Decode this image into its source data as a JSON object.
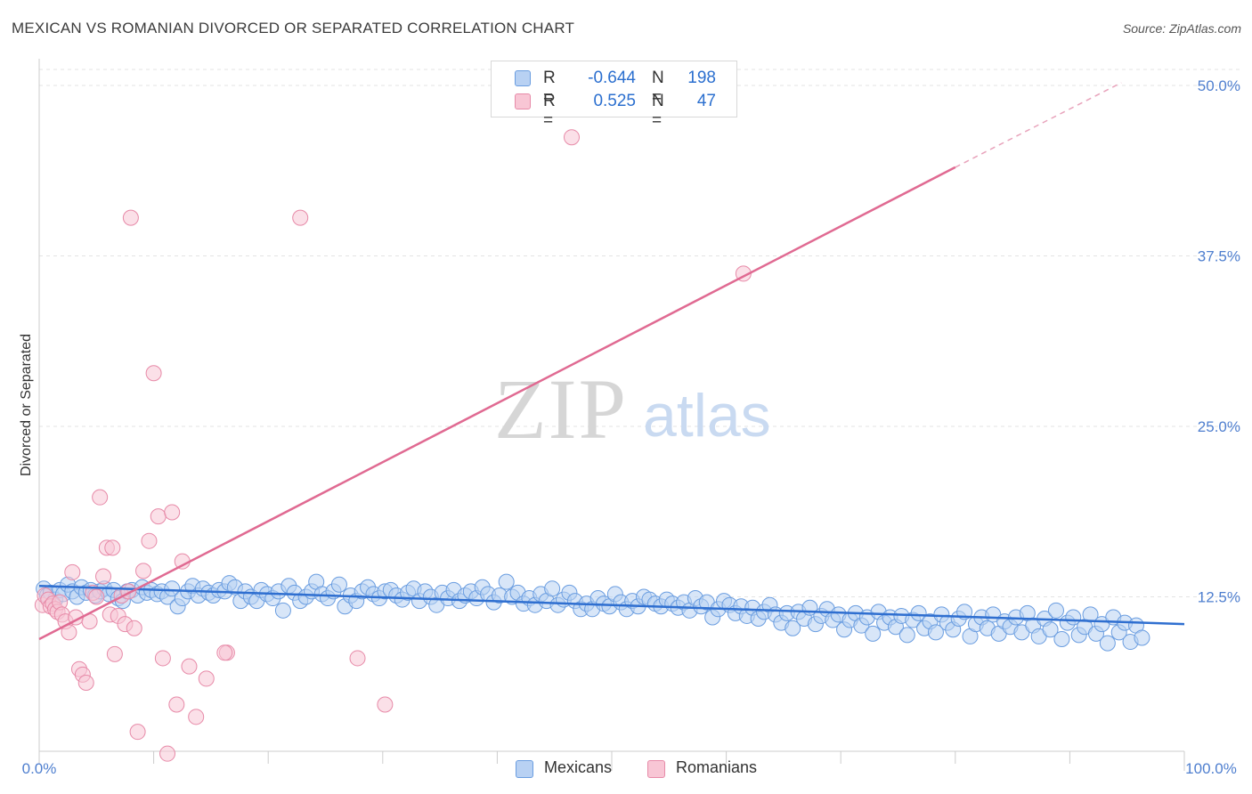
{
  "header": {
    "title": "MEXICAN VS ROMANIAN DIVORCED OR SEPARATED CORRELATION CHART",
    "source": "Source: ZipAtlas.com"
  },
  "watermark": {
    "zip": "ZIP",
    "atlas": "atlas"
  },
  "legend_top": {
    "rows": [
      {
        "r_label": "R =",
        "r_value": "-0.644",
        "n_label": "N =",
        "n_value": "198",
        "color": "#6a9de0",
        "fill": "#b8d1f3"
      },
      {
        "r_label": "R =",
        "r_value": "0.525",
        "n_label": "N =",
        "n_value": "47",
        "color": "#e78aa8",
        "fill": "#f8c6d5"
      }
    ]
  },
  "legend_bottom": {
    "items": [
      {
        "label": "Mexicans",
        "fill": "#b8d1f3",
        "color": "#6a9de0"
      },
      {
        "label": "Romanians",
        "fill": "#f8c6d5",
        "color": "#e78aa8"
      }
    ]
  },
  "chart_data": {
    "type": "scatter",
    "title": "MEXICAN VS ROMANIAN DIVORCED OR SEPARATED CORRELATION CHART",
    "xlabel": "",
    "ylabel": "Divorced or Separated",
    "xlim": [
      0,
      100
    ],
    "ylim": [
      0,
      50
    ],
    "x_tick_labels": [
      "0.0%",
      "100.0%"
    ],
    "y_ticks": [
      12.5,
      25.0,
      37.5,
      50.0
    ],
    "y_tick_labels": [
      "12.5%",
      "25.0%",
      "37.5%",
      "50.0%"
    ],
    "grid": true,
    "legend_position": "top-center",
    "series": [
      {
        "name": "Mexicans",
        "color": "#6a9de0",
        "fill": "#b8d1f3",
        "r": -0.644,
        "n": 198,
        "trend": {
          "x": [
            0,
            100
          ],
          "y": [
            13.3,
            10.5
          ]
        },
        "points": [
          [
            0.4,
            13.1
          ],
          [
            0.7,
            12.6
          ],
          [
            1.0,
            12.8
          ],
          [
            1.4,
            12.3
          ],
          [
            1.8,
            13.0
          ],
          [
            2.1,
            12.7
          ],
          [
            2.5,
            13.4
          ],
          [
            2.9,
            12.9
          ],
          [
            3.3,
            12.5
          ],
          [
            3.7,
            13.2
          ],
          [
            4.1,
            12.8
          ],
          [
            4.5,
            13.0
          ],
          [
            4.9,
            12.6
          ],
          [
            5.3,
            12.9
          ],
          [
            5.7,
            13.1
          ],
          [
            6.1,
            12.7
          ],
          [
            6.5,
            13.0
          ],
          [
            6.9,
            12.4
          ],
          [
            7.3,
            12.2
          ],
          [
            7.7,
            12.9
          ],
          [
            8.1,
            13.0
          ],
          [
            8.6,
            12.6
          ],
          [
            9.0,
            13.2
          ],
          [
            9.4,
            12.8
          ],
          [
            9.8,
            13.0
          ],
          [
            10.3,
            12.7
          ],
          [
            10.7,
            12.9
          ],
          [
            11.2,
            12.5
          ],
          [
            11.6,
            13.1
          ],
          [
            12.1,
            11.8
          ],
          [
            12.5,
            12.4
          ],
          [
            13.0,
            12.9
          ],
          [
            13.4,
            13.3
          ],
          [
            13.9,
            12.6
          ],
          [
            14.3,
            13.1
          ],
          [
            14.8,
            12.8
          ],
          [
            15.2,
            12.6
          ],
          [
            15.7,
            13.0
          ],
          [
            16.2,
            12.9
          ],
          [
            16.6,
            13.5
          ],
          [
            17.1,
            13.2
          ],
          [
            17.6,
            12.2
          ],
          [
            18.0,
            12.9
          ],
          [
            18.5,
            12.5
          ],
          [
            19.0,
            12.2
          ],
          [
            19.4,
            13.0
          ],
          [
            19.9,
            12.7
          ],
          [
            20.4,
            12.4
          ],
          [
            20.9,
            12.9
          ],
          [
            21.3,
            11.5
          ],
          [
            21.8,
            13.3
          ],
          [
            22.3,
            12.8
          ],
          [
            22.8,
            12.2
          ],
          [
            23.3,
            12.5
          ],
          [
            23.8,
            12.9
          ],
          [
            24.2,
            13.6
          ],
          [
            24.7,
            12.7
          ],
          [
            25.2,
            12.4
          ],
          [
            25.7,
            12.9
          ],
          [
            26.2,
            13.4
          ],
          [
            26.7,
            11.8
          ],
          [
            27.2,
            12.6
          ],
          [
            27.7,
            12.2
          ],
          [
            28.2,
            12.9
          ],
          [
            28.7,
            13.2
          ],
          [
            29.2,
            12.7
          ],
          [
            29.7,
            12.4
          ],
          [
            30.2,
            12.9
          ],
          [
            30.7,
            13.0
          ],
          [
            31.2,
            12.6
          ],
          [
            31.7,
            12.3
          ],
          [
            32.2,
            12.8
          ],
          [
            32.7,
            13.1
          ],
          [
            33.2,
            12.2
          ],
          [
            33.7,
            12.9
          ],
          [
            34.2,
            12.5
          ],
          [
            34.7,
            11.9
          ],
          [
            35.2,
            12.8
          ],
          [
            35.7,
            12.4
          ],
          [
            36.2,
            13.0
          ],
          [
            36.7,
            12.2
          ],
          [
            37.2,
            12.6
          ],
          [
            37.7,
            12.9
          ],
          [
            38.2,
            12.4
          ],
          [
            38.7,
            13.2
          ],
          [
            39.2,
            12.7
          ],
          [
            39.7,
            12.1
          ],
          [
            40.2,
            12.6
          ],
          [
            40.8,
            13.6
          ],
          [
            41.3,
            12.5
          ],
          [
            41.8,
            12.8
          ],
          [
            42.3,
            12.0
          ],
          [
            42.8,
            12.4
          ],
          [
            43.3,
            11.9
          ],
          [
            43.8,
            12.7
          ],
          [
            44.3,
            12.2
          ],
          [
            44.8,
            13.1
          ],
          [
            45.3,
            11.9
          ],
          [
            45.8,
            12.3
          ],
          [
            46.3,
            12.8
          ],
          [
            46.8,
            12.2
          ],
          [
            47.3,
            11.6
          ],
          [
            47.8,
            12.0
          ],
          [
            48.3,
            11.6
          ],
          [
            48.8,
            12.4
          ],
          [
            49.3,
            12.0
          ],
          [
            49.8,
            11.8
          ],
          [
            50.3,
            12.7
          ],
          [
            50.8,
            12.1
          ],
          [
            51.3,
            11.6
          ],
          [
            51.8,
            12.2
          ],
          [
            52.3,
            11.8
          ],
          [
            52.8,
            12.5
          ],
          [
            53.3,
            12.3
          ],
          [
            53.8,
            12.0
          ],
          [
            54.3,
            11.8
          ],
          [
            54.8,
            12.3
          ],
          [
            55.3,
            12.0
          ],
          [
            55.8,
            11.7
          ],
          [
            56.3,
            12.1
          ],
          [
            56.8,
            11.5
          ],
          [
            57.3,
            12.4
          ],
          [
            57.8,
            11.8
          ],
          [
            58.3,
            12.1
          ],
          [
            58.8,
            11.0
          ],
          [
            59.3,
            11.6
          ],
          [
            59.8,
            12.2
          ],
          [
            60.3,
            11.9
          ],
          [
            60.8,
            11.3
          ],
          [
            61.3,
            11.8
          ],
          [
            61.8,
            11.1
          ],
          [
            62.3,
            11.7
          ],
          [
            62.8,
            10.9
          ],
          [
            63.3,
            11.4
          ],
          [
            63.8,
            11.9
          ],
          [
            64.3,
            11.2
          ],
          [
            64.8,
            10.6
          ],
          [
            65.3,
            11.3
          ],
          [
            65.8,
            10.2
          ],
          [
            66.3,
            11.4
          ],
          [
            66.8,
            10.9
          ],
          [
            67.3,
            11.7
          ],
          [
            67.8,
            10.5
          ],
          [
            68.3,
            11.1
          ],
          [
            68.8,
            11.6
          ],
          [
            69.3,
            10.8
          ],
          [
            69.8,
            11.2
          ],
          [
            70.3,
            10.1
          ],
          [
            70.8,
            10.8
          ],
          [
            71.3,
            11.3
          ],
          [
            71.8,
            10.4
          ],
          [
            72.3,
            11.0
          ],
          [
            72.8,
            9.8
          ],
          [
            73.3,
            11.4
          ],
          [
            73.8,
            10.6
          ],
          [
            74.3,
            11.0
          ],
          [
            74.8,
            10.3
          ],
          [
            75.3,
            11.1
          ],
          [
            75.8,
            9.7
          ],
          [
            76.3,
            10.8
          ],
          [
            76.8,
            11.3
          ],
          [
            77.3,
            10.2
          ],
          [
            77.8,
            10.7
          ],
          [
            78.3,
            9.9
          ],
          [
            78.8,
            11.2
          ],
          [
            79.3,
            10.6
          ],
          [
            79.8,
            10.1
          ],
          [
            80.3,
            10.9
          ],
          [
            80.8,
            11.4
          ],
          [
            81.3,
            9.6
          ],
          [
            81.8,
            10.5
          ],
          [
            82.3,
            11.0
          ],
          [
            82.8,
            10.2
          ],
          [
            83.3,
            11.2
          ],
          [
            83.8,
            9.8
          ],
          [
            84.3,
            10.7
          ],
          [
            84.8,
            10.3
          ],
          [
            85.3,
            11.0
          ],
          [
            85.8,
            9.9
          ],
          [
            86.3,
            11.3
          ],
          [
            86.8,
            10.4
          ],
          [
            87.3,
            9.6
          ],
          [
            87.8,
            10.9
          ],
          [
            88.3,
            10.1
          ],
          [
            88.8,
            11.5
          ],
          [
            89.3,
            9.4
          ],
          [
            89.8,
            10.6
          ],
          [
            90.3,
            11.0
          ],
          [
            90.8,
            9.7
          ],
          [
            91.3,
            10.3
          ],
          [
            91.8,
            11.2
          ],
          [
            92.3,
            9.8
          ],
          [
            92.8,
            10.5
          ],
          [
            93.3,
            9.1
          ],
          [
            93.8,
            11.0
          ],
          [
            94.3,
            9.9
          ],
          [
            94.8,
            10.6
          ],
          [
            95.3,
            9.2
          ],
          [
            95.8,
            10.4
          ],
          [
            96.3,
            9.5
          ]
        ]
      },
      {
        "name": "Romanians",
        "color": "#e78aa8",
        "fill": "#f8c6d5",
        "r": 0.525,
        "n": 47,
        "trend": {
          "x": [
            0,
            80
          ],
          "y": [
            9.4,
            44.0
          ]
        },
        "trend_dashed": {
          "x": [
            80,
            94.5
          ],
          "y": [
            44.0,
            50.2
          ]
        },
        "points": [
          [
            0.3,
            11.9
          ],
          [
            0.5,
            12.6
          ],
          [
            0.8,
            12.3
          ],
          [
            1.0,
            11.8
          ],
          [
            1.2,
            12.0
          ],
          [
            1.4,
            11.6
          ],
          [
            1.6,
            11.4
          ],
          [
            1.8,
            12.1
          ],
          [
            2.0,
            11.2
          ],
          [
            2.3,
            10.7
          ],
          [
            2.6,
            9.9
          ],
          [
            2.9,
            14.3
          ],
          [
            3.2,
            11.0
          ],
          [
            3.5,
            7.2
          ],
          [
            3.8,
            6.8
          ],
          [
            4.1,
            6.2
          ],
          [
            4.4,
            10.7
          ],
          [
            4.7,
            12.8
          ],
          [
            5.0,
            12.5
          ],
          [
            5.3,
            19.8
          ],
          [
            5.6,
            14.0
          ],
          [
            5.9,
            16.1
          ],
          [
            6.2,
            11.2
          ],
          [
            6.4,
            16.1
          ],
          [
            6.6,
            8.3
          ],
          [
            6.9,
            11.1
          ],
          [
            7.2,
            12.6
          ],
          [
            7.5,
            10.5
          ],
          [
            7.8,
            12.9
          ],
          [
            8.0,
            40.3
          ],
          [
            8.3,
            10.2
          ],
          [
            8.6,
            2.6
          ],
          [
            9.1,
            14.4
          ],
          [
            9.6,
            16.6
          ],
          [
            10.0,
            28.9
          ],
          [
            10.4,
            18.4
          ],
          [
            10.8,
            8.0
          ],
          [
            11.2,
            1.0
          ],
          [
            11.6,
            18.7
          ],
          [
            12.0,
            4.6
          ],
          [
            12.5,
            15.1
          ],
          [
            13.1,
            7.4
          ],
          [
            13.7,
            3.7
          ],
          [
            14.6,
            6.5
          ],
          [
            16.4,
            8.4
          ],
          [
            30.2,
            4.6
          ],
          [
            46.5,
            46.2
          ]
        ],
        "extra_points": [
          [
            22.8,
            40.3
          ],
          [
            61.5,
            36.2
          ],
          [
            27.8,
            8.0
          ],
          [
            16.2,
            8.4
          ]
        ]
      }
    ]
  }
}
